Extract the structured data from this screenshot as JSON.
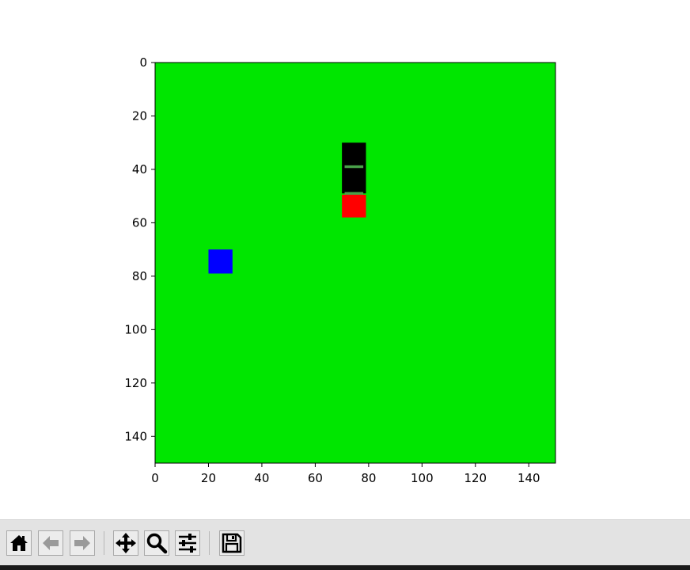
{
  "window": {
    "kind": "matplotlib-figure"
  },
  "game": {
    "board_extent": [
      0,
      150
    ],
    "background_color": "#00e600",
    "entities": [
      {
        "name": "snake-body",
        "color": "#000000",
        "x0": 70,
        "x1": 79,
        "y0": 30,
        "y1": 49
      },
      {
        "name": "snake-segment-marker",
        "color": "#4aa14a",
        "x0": 71,
        "x1": 78,
        "y0": 38.5,
        "y1": 39.5
      },
      {
        "name": "snake-segment-marker",
        "color": "#4aa14a",
        "x0": 71,
        "x1": 78,
        "y0": 48.5,
        "y1": 49.5
      },
      {
        "name": "snake-head",
        "color": "#ff0000",
        "x0": 70,
        "x1": 79,
        "y0": 49.5,
        "y1": 58
      },
      {
        "name": "food-item",
        "color": "#0000ff",
        "x0": 20,
        "x1": 29,
        "y0": 70,
        "y1": 79
      }
    ]
  },
  "axes": {
    "x_ticks": [
      "0",
      "20",
      "40",
      "60",
      "80",
      "100",
      "120",
      "140"
    ],
    "x_tick_values": [
      0,
      20,
      40,
      60,
      80,
      100,
      120,
      140
    ],
    "y_ticks": [
      "0",
      "20",
      "40",
      "60",
      "80",
      "100",
      "120",
      "140"
    ],
    "y_tick_values": [
      0,
      20,
      40,
      60,
      80,
      100,
      120,
      140
    ]
  },
  "toolbar": {
    "buttons": [
      {
        "name": "home-button",
        "icon": "home-icon"
      },
      {
        "name": "back-button",
        "icon": "arrow-left-icon"
      },
      {
        "name": "forward-button",
        "icon": "arrow-right-icon"
      },
      {
        "name": "pan-button",
        "icon": "move-icon"
      },
      {
        "name": "zoom-button",
        "icon": "magnifier-icon"
      },
      {
        "name": "configure-subplots-button",
        "icon": "sliders-icon"
      },
      {
        "name": "save-button",
        "icon": "floppy-disk-icon"
      }
    ]
  }
}
